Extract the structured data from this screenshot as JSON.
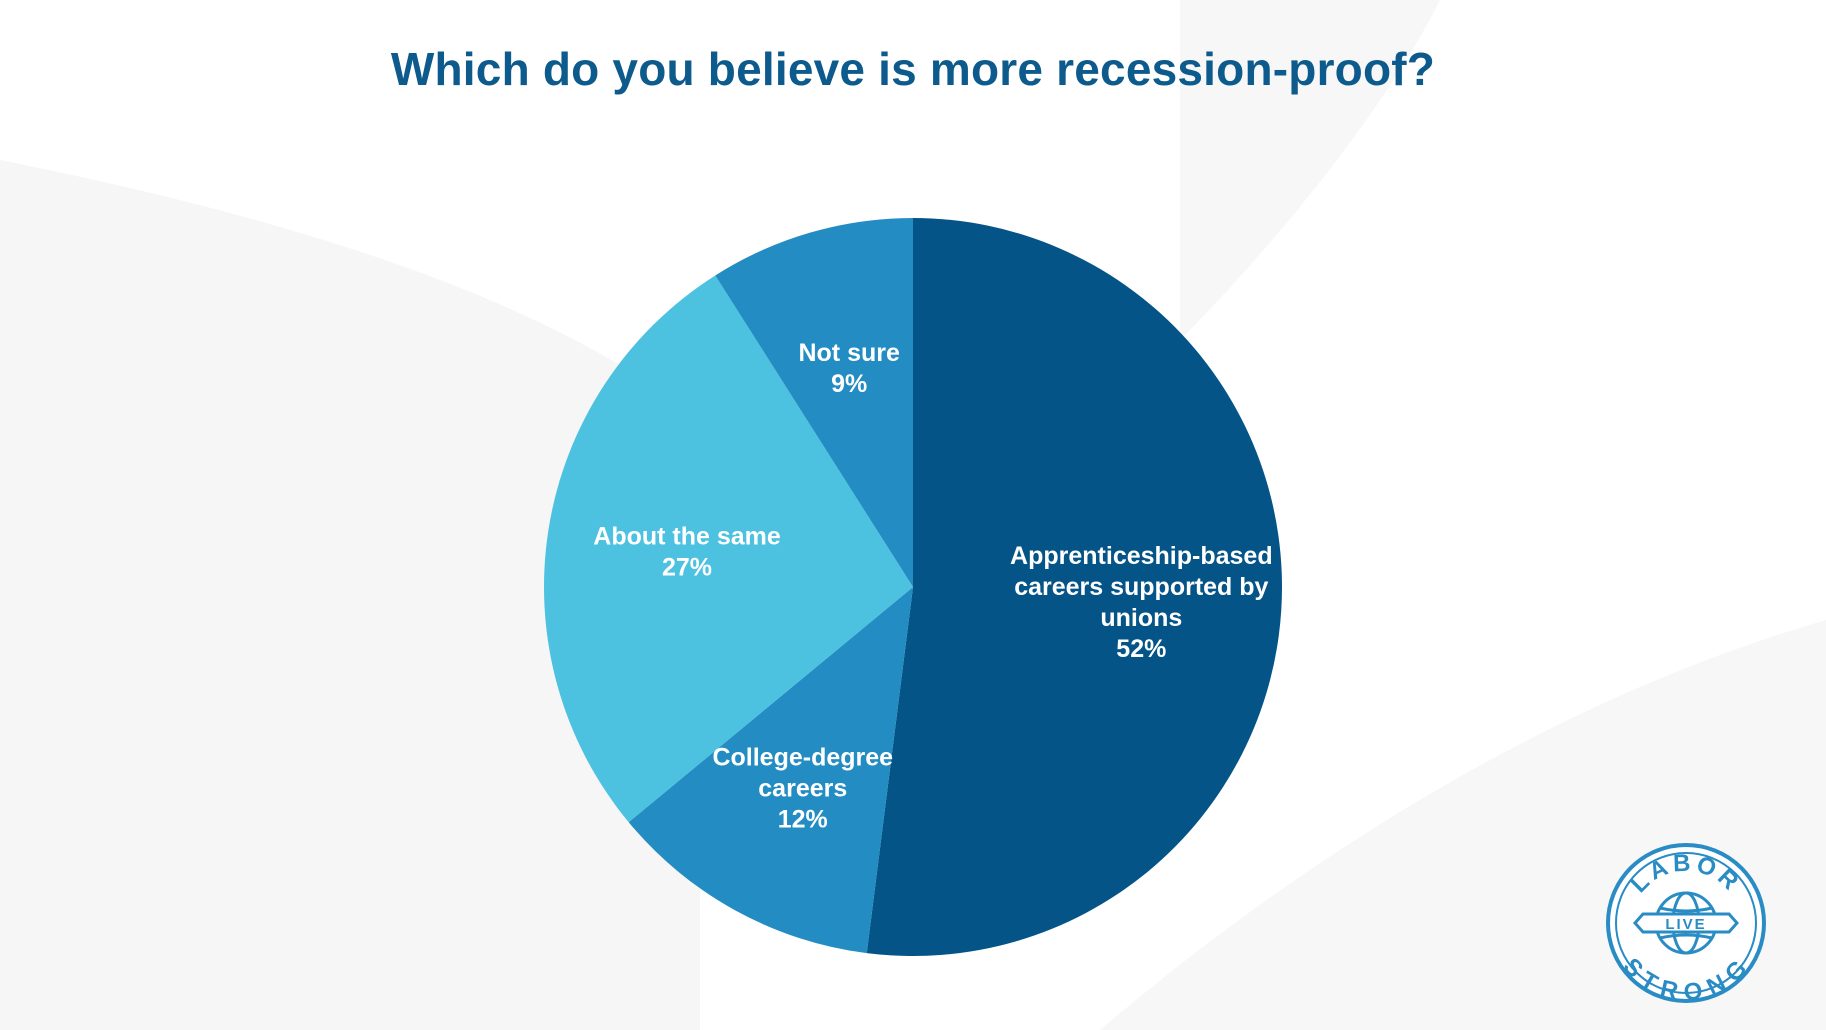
{
  "page": {
    "title": "Which do you believe is more recession-proof?"
  },
  "colors": {
    "title": "#0d5a8c",
    "background": "#ffffff",
    "logo": "#2a8cc4"
  },
  "logo": {
    "top_text": "LABOR",
    "center_text": "LIVE",
    "bottom_text": "STRONG",
    "icon": "globe-icon"
  },
  "chart_data": {
    "type": "pie",
    "title": "Which do you believe is more recession-proof?",
    "start_angle_deg": 0,
    "direction": "clockwise",
    "slices": [
      {
        "label_lines": [
          "Apprenticeship-based",
          "careers supported by",
          "unions"
        ],
        "value": 52,
        "value_label": "52%",
        "color": "#045488"
      },
      {
        "label_lines": [
          "College-degree",
          "careers"
        ],
        "value": 12,
        "value_label": "12%",
        "color": "#238cc2"
      },
      {
        "label_lines": [
          "About the same"
        ],
        "value": 27,
        "value_label": "27%",
        "color": "#4dc1e0"
      },
      {
        "label_lines": [
          "Not sure"
        ],
        "value": 9,
        "value_label": "9%",
        "color": "#238cc2"
      }
    ]
  }
}
